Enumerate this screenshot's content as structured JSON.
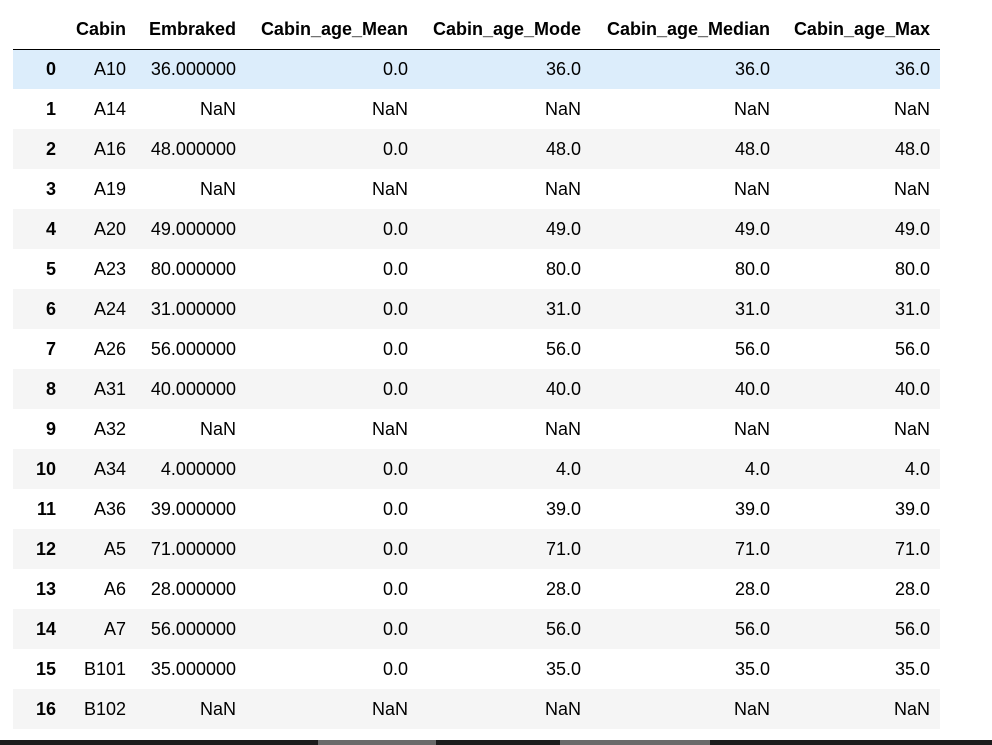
{
  "table": {
    "columns": [
      "",
      "Cabin",
      "Embraked",
      "Cabin_age_Mean",
      "Cabin_age_Mode",
      "Cabin_age_Median",
      "Cabin_age_Max"
    ],
    "rows": [
      [
        "0",
        "A10",
        "36.000000",
        "0.0",
        "36.0",
        "36.0",
        "36.0"
      ],
      [
        "1",
        "A14",
        "NaN",
        "NaN",
        "NaN",
        "NaN",
        "NaN"
      ],
      [
        "2",
        "A16",
        "48.000000",
        "0.0",
        "48.0",
        "48.0",
        "48.0"
      ],
      [
        "3",
        "A19",
        "NaN",
        "NaN",
        "NaN",
        "NaN",
        "NaN"
      ],
      [
        "4",
        "A20",
        "49.000000",
        "0.0",
        "49.0",
        "49.0",
        "49.0"
      ],
      [
        "5",
        "A23",
        "80.000000",
        "0.0",
        "80.0",
        "80.0",
        "80.0"
      ],
      [
        "6",
        "A24",
        "31.000000",
        "0.0",
        "31.0",
        "31.0",
        "31.0"
      ],
      [
        "7",
        "A26",
        "56.000000",
        "0.0",
        "56.0",
        "56.0",
        "56.0"
      ],
      [
        "8",
        "A31",
        "40.000000",
        "0.0",
        "40.0",
        "40.0",
        "40.0"
      ],
      [
        "9",
        "A32",
        "NaN",
        "NaN",
        "NaN",
        "NaN",
        "NaN"
      ],
      [
        "10",
        "A34",
        "4.000000",
        "0.0",
        "4.0",
        "4.0",
        "4.0"
      ],
      [
        "11",
        "A36",
        "39.000000",
        "0.0",
        "39.0",
        "39.0",
        "39.0"
      ],
      [
        "12",
        "A5",
        "71.000000",
        "0.0",
        "71.0",
        "71.0",
        "71.0"
      ],
      [
        "13",
        "A6",
        "28.000000",
        "0.0",
        "28.0",
        "28.0",
        "28.0"
      ],
      [
        "14",
        "A7",
        "56.000000",
        "0.0",
        "56.0",
        "56.0",
        "56.0"
      ],
      [
        "15",
        "B101",
        "35.000000",
        "0.0",
        "35.0",
        "35.0",
        "35.0"
      ],
      [
        "16",
        "B102",
        "NaN",
        "NaN",
        "NaN",
        "NaN",
        "NaN"
      ]
    ],
    "selected_row": 0,
    "colors": {
      "header_border": "#000000",
      "row_stripe": "#f5f5f5",
      "row_selected": "#dcedfb",
      "taskbar": "#1c1c1c"
    }
  }
}
